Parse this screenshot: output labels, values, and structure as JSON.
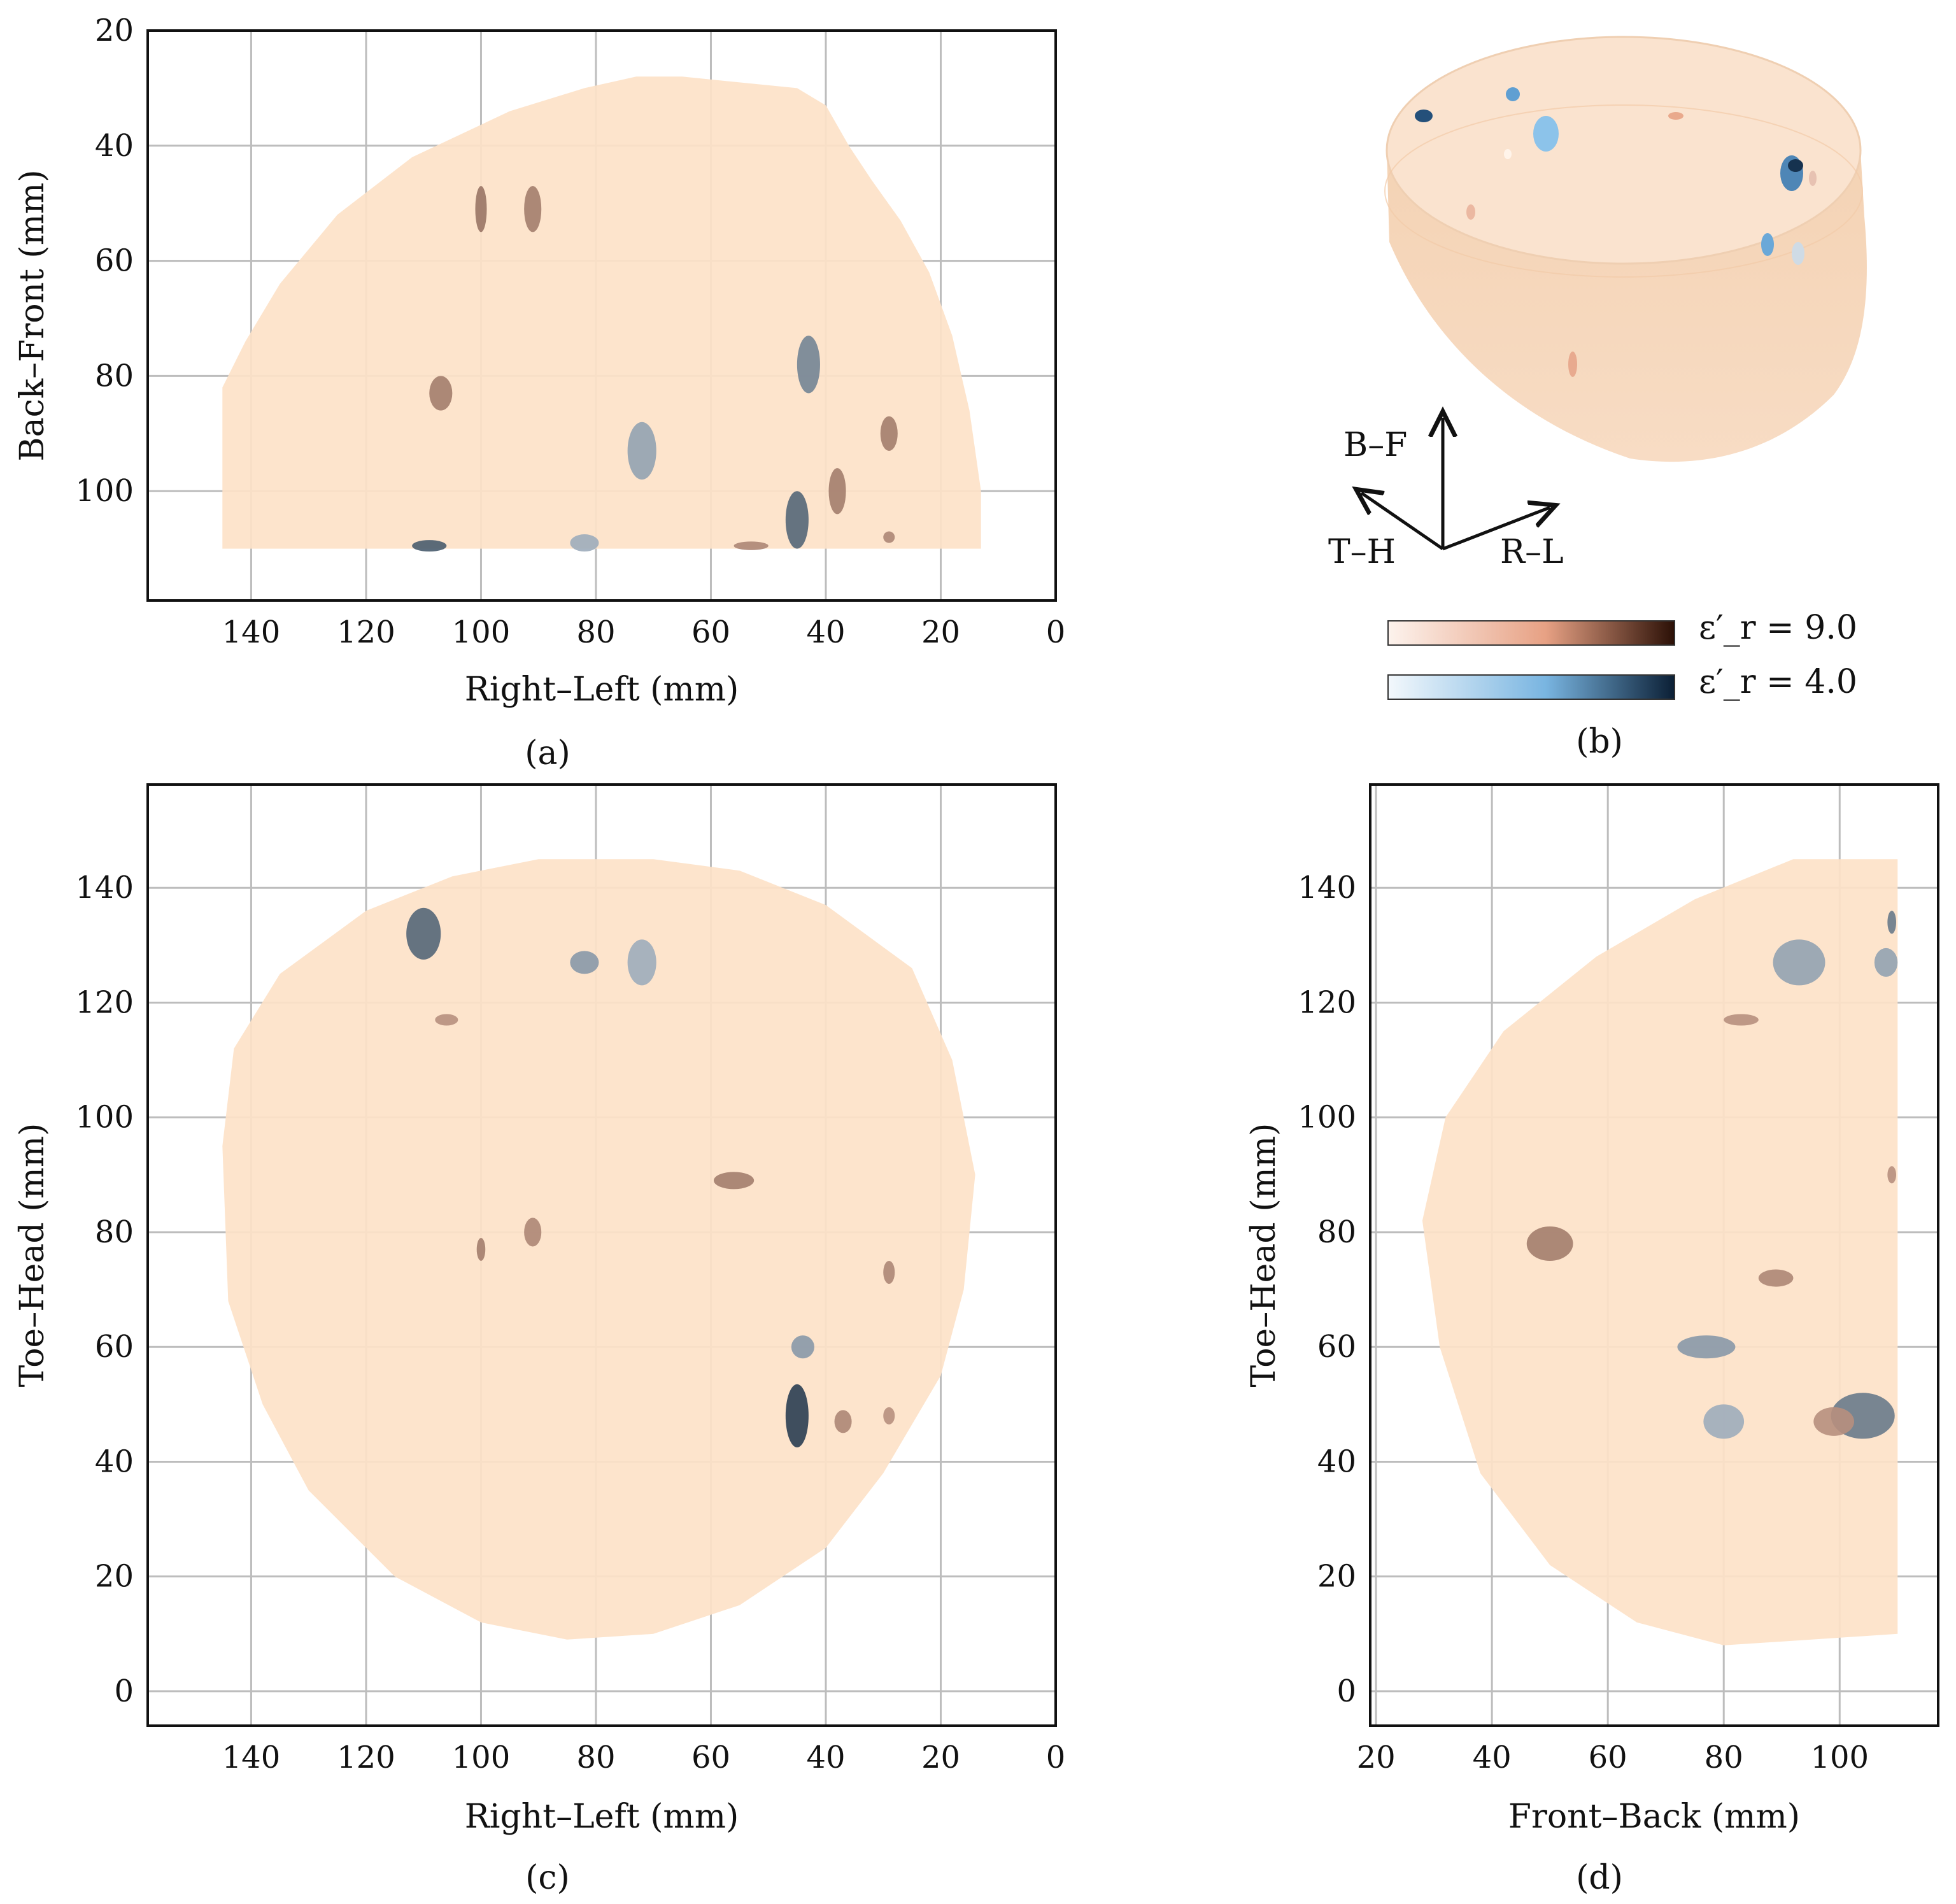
{
  "chart_data": [
    {
      "id": "a",
      "type": "scatter",
      "subplot_label": "(a)",
      "xlabel": "Right–Left (mm)",
      "ylabel": "Back–Front (mm)",
      "xlim": [
        158,
        0
      ],
      "ylim": [
        20,
        119
      ],
      "y_inverted": true,
      "xticks": [
        140,
        120,
        100,
        80,
        60,
        40,
        20,
        0
      ],
      "yticks": [
        20,
        40,
        60,
        80,
        100
      ],
      "grid": true,
      "outline": [
        [
          145,
          110
        ],
        [
          145,
          82
        ],
        [
          141,
          74
        ],
        [
          135,
          64
        ],
        [
          125,
          52
        ],
        [
          112,
          42
        ],
        [
          95,
          34
        ],
        [
          82,
          30
        ],
        [
          73,
          28
        ],
        [
          65,
          28
        ],
        [
          55,
          29
        ],
        [
          45,
          30
        ],
        [
          40,
          33
        ],
        [
          36,
          40
        ],
        [
          32,
          46
        ],
        [
          27,
          53
        ],
        [
          22,
          62
        ],
        [
          18,
          73
        ],
        [
          15,
          86
        ],
        [
          13,
          100
        ],
        [
          13,
          110
        ]
      ],
      "inclusions": [
        {
          "x": 100,
          "y": 51,
          "w": 2,
          "h": 8,
          "material": "high",
          "shade": 0.45
        },
        {
          "x": 91,
          "y": 51,
          "w": 3,
          "h": 8,
          "material": "high",
          "shade": 0.4
        },
        {
          "x": 107,
          "y": 83,
          "w": 4,
          "h": 6,
          "material": "high",
          "shade": 0.4
        },
        {
          "x": 29,
          "y": 90,
          "w": 3,
          "h": 6,
          "material": "high",
          "shade": 0.4
        },
        {
          "x": 38,
          "y": 100,
          "w": 3,
          "h": 8,
          "material": "high",
          "shade": 0.4
        },
        {
          "x": 53,
          "y": 109.5,
          "w": 6,
          "h": 1.5,
          "material": "high",
          "shade": 0.35
        },
        {
          "x": 29,
          "y": 108,
          "w": 2,
          "h": 2,
          "material": "high",
          "shade": 0.35
        },
        {
          "x": 43,
          "y": 78,
          "w": 4,
          "h": 10,
          "material": "low",
          "shade": 0.5
        },
        {
          "x": 72,
          "y": 93,
          "w": 5,
          "h": 10,
          "material": "low",
          "shade": 0.35
        },
        {
          "x": 45,
          "y": 105,
          "w": 4,
          "h": 10,
          "material": "low",
          "shade": 0.65
        },
        {
          "x": 82,
          "y": 109,
          "w": 5,
          "h": 3,
          "material": "low",
          "shade": 0.3
        },
        {
          "x": 109,
          "y": 109.5,
          "w": 6,
          "h": 2,
          "material": "low",
          "shade": 0.7
        }
      ]
    },
    {
      "id": "b",
      "type": "3d-render",
      "subplot_label": "(b)",
      "axis_labels": [
        "B–F",
        "T–H",
        "R–L"
      ],
      "colorbars": [
        {
          "label": "ε′_r = 9.0",
          "colors": [
            "#fdf3ed",
            "#e7a184",
            "#2b1006"
          ]
        },
        {
          "label": "ε′_r = 4.0",
          "colors": [
            "#f3f8fc",
            "#79b5e1",
            "#0b1f35"
          ]
        }
      ]
    },
    {
      "id": "c",
      "type": "scatter",
      "subplot_label": "(c)",
      "xlabel": "Right–Left (mm)",
      "ylabel": "Toe–Head (mm)",
      "xlim": [
        158,
        0
      ],
      "ylim": [
        -6,
        158
      ],
      "xticks": [
        140,
        120,
        100,
        80,
        60,
        40,
        20,
        0
      ],
      "yticks": [
        0,
        20,
        40,
        60,
        80,
        100,
        120,
        140
      ],
      "grid": true,
      "outline": [
        [
          145,
          95
        ],
        [
          143,
          112
        ],
        [
          135,
          125
        ],
        [
          120,
          136
        ],
        [
          105,
          142
        ],
        [
          90,
          145
        ],
        [
          70,
          145
        ],
        [
          55,
          143
        ],
        [
          40,
          137
        ],
        [
          25,
          126
        ],
        [
          18,
          110
        ],
        [
          14,
          90
        ],
        [
          16,
          70
        ],
        [
          20,
          55
        ],
        [
          30,
          38
        ],
        [
          40,
          25
        ],
        [
          55,
          15
        ],
        [
          70,
          10
        ],
        [
          85,
          9
        ],
        [
          100,
          12
        ],
        [
          115,
          20
        ],
        [
          130,
          35
        ],
        [
          138,
          50
        ],
        [
          144,
          68
        ]
      ],
      "inclusions": [
        {
          "x": 110,
          "y": 132,
          "w": 6,
          "h": 9,
          "material": "low",
          "shade": 0.65
        },
        {
          "x": 82,
          "y": 127,
          "w": 5,
          "h": 4,
          "material": "low",
          "shade": 0.4
        },
        {
          "x": 72,
          "y": 127,
          "w": 5,
          "h": 8,
          "material": "low",
          "shade": 0.3
        },
        {
          "x": 44,
          "y": 60,
          "w": 4,
          "h": 4,
          "material": "low",
          "shade": 0.4
        },
        {
          "x": 45,
          "y": 48,
          "w": 4,
          "h": 11,
          "material": "low",
          "shade": 0.85
        },
        {
          "x": 106,
          "y": 117,
          "w": 4,
          "h": 2,
          "material": "high",
          "shade": 0.3
        },
        {
          "x": 56,
          "y": 89,
          "w": 7,
          "h": 3,
          "material": "high",
          "shade": 0.4
        },
        {
          "x": 91,
          "y": 80,
          "w": 3,
          "h": 5,
          "material": "high",
          "shade": 0.35
        },
        {
          "x": 100,
          "y": 77,
          "w": 1.5,
          "h": 4,
          "material": "high",
          "shade": 0.4
        },
        {
          "x": 29,
          "y": 73,
          "w": 2,
          "h": 4,
          "material": "high",
          "shade": 0.35
        },
        {
          "x": 37,
          "y": 47,
          "w": 3,
          "h": 4,
          "material": "high",
          "shade": 0.35
        },
        {
          "x": 29,
          "y": 48,
          "w": 2,
          "h": 3,
          "material": "high",
          "shade": 0.3
        }
      ]
    },
    {
      "id": "d",
      "type": "scatter",
      "subplot_label": "(d)",
      "xlabel": "Front–Back (mm)",
      "ylabel": "Toe–Head (mm)",
      "xlim": [
        19,
        117
      ],
      "ylim": [
        -6,
        158
      ],
      "xticks": [
        20,
        40,
        60,
        80,
        100
      ],
      "yticks": [
        0,
        20,
        40,
        60,
        80,
        100,
        120,
        140
      ],
      "grid": true,
      "outline": [
        [
          110,
          145
        ],
        [
          110,
          10
        ],
        [
          80,
          8
        ],
        [
          65,
          12
        ],
        [
          50,
          22
        ],
        [
          38,
          38
        ],
        [
          31,
          60
        ],
        [
          28,
          82
        ],
        [
          32,
          100
        ],
        [
          42,
          115
        ],
        [
          58,
          128
        ],
        [
          75,
          138
        ],
        [
          92,
          145
        ]
      ],
      "inclusions": [
        {
          "x": 93,
          "y": 127,
          "w": 9,
          "h": 8,
          "material": "low",
          "shade": 0.35
        },
        {
          "x": 108,
          "y": 127,
          "w": 4,
          "h": 5,
          "material": "low",
          "shade": 0.35
        },
        {
          "x": 109,
          "y": 134,
          "w": 1.5,
          "h": 4,
          "material": "low",
          "shade": 0.55
        },
        {
          "x": 77,
          "y": 60,
          "w": 10,
          "h": 4,
          "material": "low",
          "shade": 0.4
        },
        {
          "x": 80,
          "y": 47,
          "w": 7,
          "h": 6,
          "material": "low",
          "shade": 0.3
        },
        {
          "x": 104,
          "y": 48,
          "w": 11,
          "h": 8,
          "material": "low",
          "shade": 0.55
        },
        {
          "x": 50,
          "y": 78,
          "w": 8,
          "h": 6,
          "material": "high",
          "shade": 0.4
        },
        {
          "x": 83,
          "y": 117,
          "w": 6,
          "h": 2,
          "material": "high",
          "shade": 0.3
        },
        {
          "x": 89,
          "y": 72,
          "w": 6,
          "h": 3,
          "material": "high",
          "shade": 0.35
        },
        {
          "x": 99,
          "y": 47,
          "w": 7,
          "h": 5,
          "material": "high",
          "shade": 0.3
        },
        {
          "x": 109,
          "y": 90,
          "w": 1.5,
          "h": 3,
          "material": "high",
          "shade": 0.3
        }
      ]
    }
  ],
  "colors": {
    "tissue": "#fde2c8",
    "high_light": "#f3c6b2",
    "high_dark": "#2b1006",
    "low_light": "#dbe9f4",
    "low_dark": "#0b1f35",
    "grid": "#bdbdbd"
  }
}
